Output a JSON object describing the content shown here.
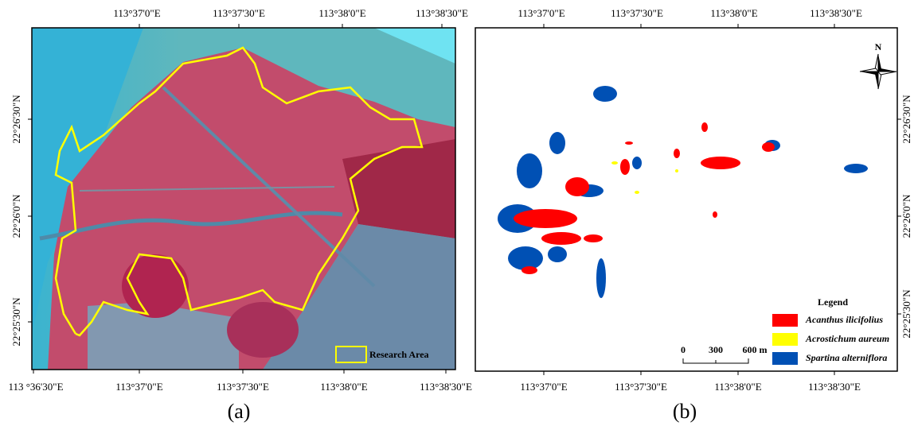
{
  "panels": [
    {
      "caption": "(a)",
      "top_labels": [
        "113°37'0\"E",
        "113°37'30\"E",
        "113°38'0\"E",
        "113°38'30\"E"
      ],
      "bottom_labels": [
        "113 °36'30\"E",
        "113°37'0\"E",
        "113°37'30\"E",
        "113°38'0\"E",
        "113°38'30\"E"
      ],
      "side_labels": [
        "22°26'30\"N",
        "22°26'0\"N",
        "22°25'30\"N"
      ],
      "inset_label": "Research Area"
    },
    {
      "caption": "(b)",
      "top_labels": [
        "113°37'0\"E",
        "113°37'30\"E",
        "113°38'0\"E",
        "113°38'30\"E"
      ],
      "bottom_labels": [
        "113°37'0\"E",
        "113°37'30\"E",
        "113°38'0\"E",
        "113°38'30\"E"
      ],
      "side_labels": [
        "22°26'30\"N",
        "22°26'0\"N",
        "22°25'30\"N"
      ],
      "north": "N",
      "scale_bar": [
        "0",
        "300",
        "600 m"
      ],
      "legend": {
        "title": "Legend",
        "items": [
          {
            "label": "Acanthus ilicifolius",
            "color": "#ff0000"
          },
          {
            "label": "Acrostichum aureum",
            "color": "#ffff00"
          },
          {
            "label": "Spartina alterniflora",
            "color": "#0050b4"
          }
        ]
      }
    }
  ]
}
